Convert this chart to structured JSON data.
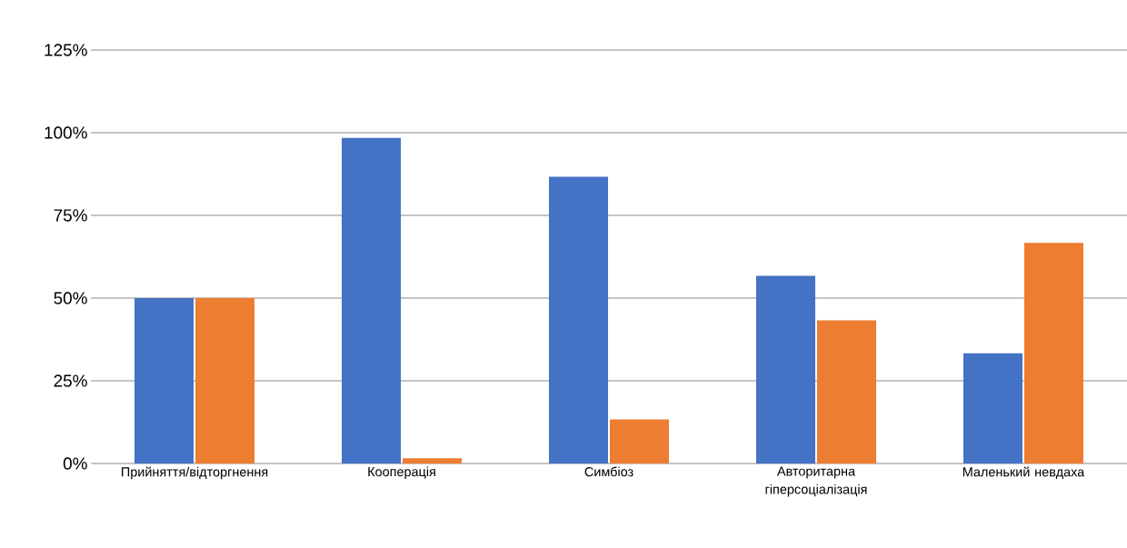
{
  "chart_data": {
    "type": "bar",
    "categories": [
      "Прийняття/відторгнення",
      "Кооперація",
      "Симбіоз",
      "Авторитарна гіперсоціалізація",
      "Маленький невдаха"
    ],
    "series": [
      {
        "color": "#4472c4",
        "values": [
          50,
          98.4,
          86.7,
          56.7,
          33.3
        ]
      },
      {
        "color": "#ed7d31",
        "values": [
          50,
          1.6,
          13.3,
          43.3,
          66.7
        ]
      }
    ],
    "ylim": [
      0,
      125
    ],
    "yticks": [
      {
        "value": 0,
        "label": "0%"
      },
      {
        "value": 25,
        "label": "25%"
      },
      {
        "value": 50,
        "label": "50%"
      },
      {
        "value": 75,
        "label": "75%"
      },
      {
        "value": 100,
        "label": "100%"
      },
      {
        "value": 125,
        "label": "125%"
      }
    ],
    "grid": "y"
  }
}
